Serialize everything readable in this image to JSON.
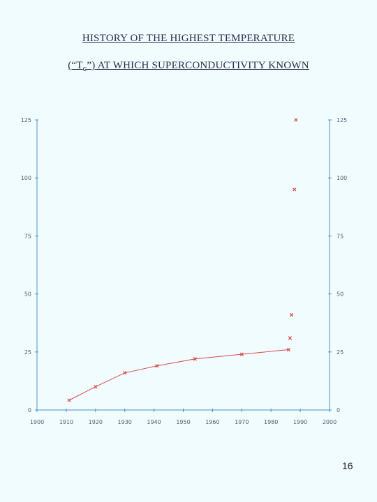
{
  "title_line1": "HISTORY OF THE HIGHEST TEMPERATURE",
  "title_line2_prefix": "(“T",
  "title_line2_sub": "c",
  "title_line2_suffix": "”) AT WHICH SUPERCONDUCTIVITY KNOWN",
  "page_number": "16",
  "colors": {
    "axis": "#4d8fc0",
    "series": "#d84a4a",
    "text": "#555a70"
  },
  "chart_data": {
    "type": "line",
    "title": "HISTORY OF THE HIGHEST TEMPERATURE (“Tc”) AT WHICH SUPERCONDUCTIVITY KNOWN",
    "xlabel": "",
    "ylabel": "",
    "xlim": [
      1900,
      2000
    ],
    "ylim": [
      0,
      125
    ],
    "x_ticks": [
      "1900",
      "1910",
      "1920",
      "1930",
      "1940",
      "1950",
      "1960",
      "1970",
      "1980",
      "1990",
      "2000"
    ],
    "y_ticks": [
      "0",
      "25",
      "50",
      "75",
      "100",
      "125"
    ],
    "grid": false,
    "connected_points": [
      {
        "x": 1911,
        "y": 4.2
      },
      {
        "x": 1920,
        "y": 10
      },
      {
        "x": 1930,
        "y": 16
      },
      {
        "x": 1941,
        "y": 19
      },
      {
        "x": 1954,
        "y": 22
      },
      {
        "x": 1970,
        "y": 24
      },
      {
        "x": 1986,
        "y": 26
      }
    ],
    "unconnected_points": [
      {
        "x": 1986.5,
        "y": 31
      },
      {
        "x": 1987,
        "y": 41
      },
      {
        "x": 1988,
        "y": 95
      },
      {
        "x": 1988.5,
        "y": 125
      }
    ]
  }
}
